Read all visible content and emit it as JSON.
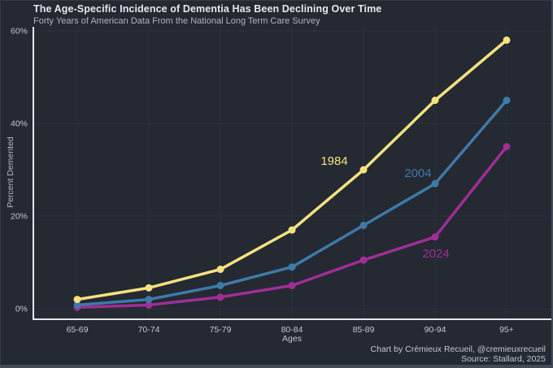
{
  "header": {
    "title": "The Age-Specific Incidence of Dementia Has Been Declining Over Time",
    "subtitle": "Forty Years of American Data From the National Long Term Care Survey"
  },
  "credits": {
    "byline": "Chart by Crémieux Recueil, @cremieuxrecueil",
    "source": "Source: Stallard, 2025"
  },
  "colors": {
    "background": "#242932",
    "frame": "#434b57",
    "gridline": "#2c323d",
    "axis_spine": "#e4e6e9",
    "title_text": "#e6e8eb",
    "subtitle_text": "#aeb4bd",
    "tick_label_text": "#c3c8cf",
    "credit_text": "#c6cad1",
    "series_1984": "#f5e17f",
    "series_2004": "#3e7aa8",
    "series_2024": "#a12d97"
  },
  "chart_data": {
    "type": "line",
    "title": "The Age-Specific Incidence of Dementia Has Been Declining Over Time",
    "subtitle": "Forty Years of American Data From the National Long Term Care Survey",
    "categories": [
      "65-69",
      "70-74",
      "75-79",
      "80-84",
      "85-89",
      "90-94",
      "95+"
    ],
    "xlabel": "Ages",
    "ylabel": "Percent Demented",
    "ylim": [
      0,
      60
    ],
    "ytick_values": [
      0,
      20,
      40,
      60
    ],
    "ytick_labels": [
      "0%",
      "20%",
      "40%",
      "60%"
    ],
    "grid": true,
    "legend_position": "inline-line-labels",
    "series": [
      {
        "name": "1984",
        "color": "#f5e17f",
        "values": [
          2,
          4.5,
          8.5,
          17,
          30,
          45,
          58
        ]
      },
      {
        "name": "2004",
        "color": "#3e7aa8",
        "values": [
          0.8,
          2,
          5,
          9,
          18,
          27,
          45
        ]
      },
      {
        "name": "2024",
        "color": "#a12d97",
        "values": [
          0.3,
          0.8,
          2.5,
          5,
          10.5,
          15.5,
          35
        ]
      }
    ]
  }
}
